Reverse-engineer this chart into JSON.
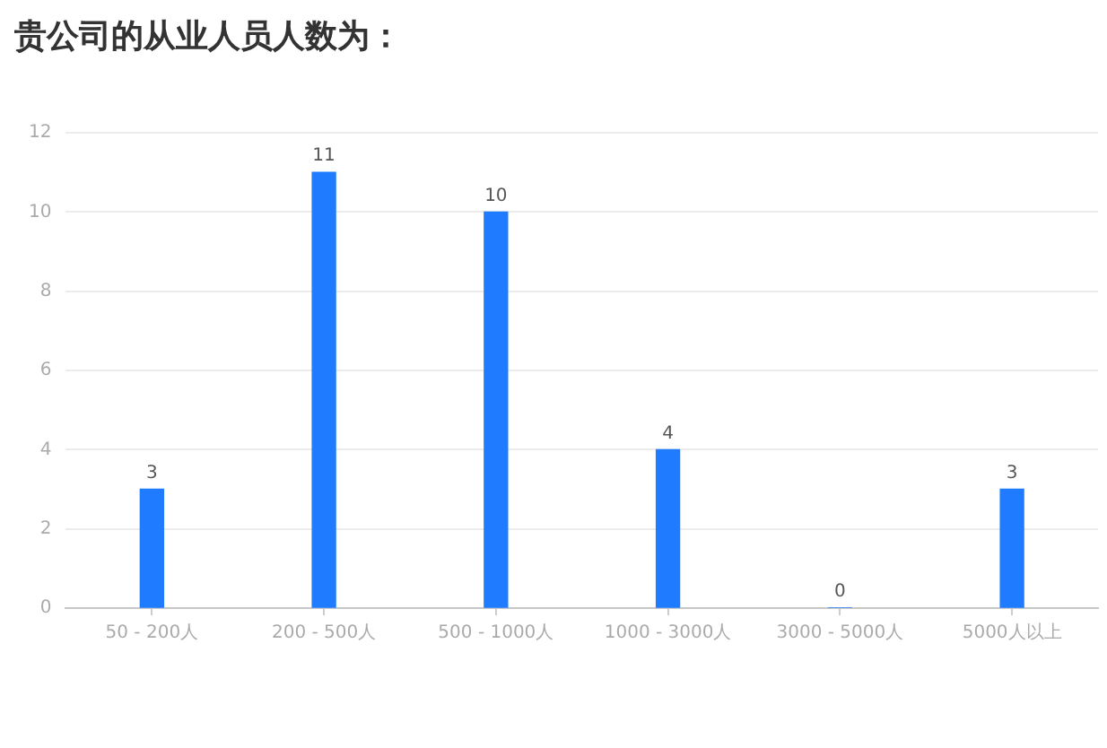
{
  "chart_data": {
    "type": "bar",
    "title": "贵公司的从业人员人数为：",
    "categories": [
      "50 - 200人",
      "200 - 500人",
      "500 - 1000人",
      "1000 - 3000人",
      "3000 - 5000人",
      "5000人以上"
    ],
    "values": [
      3,
      11,
      10,
      4,
      0,
      3
    ],
    "color": "#1f7bff",
    "ylim": [
      0,
      12
    ],
    "yticks": [
      0,
      2,
      4,
      6,
      8,
      10,
      12
    ],
    "grid": "y",
    "legend": false,
    "data_labels": true
  }
}
